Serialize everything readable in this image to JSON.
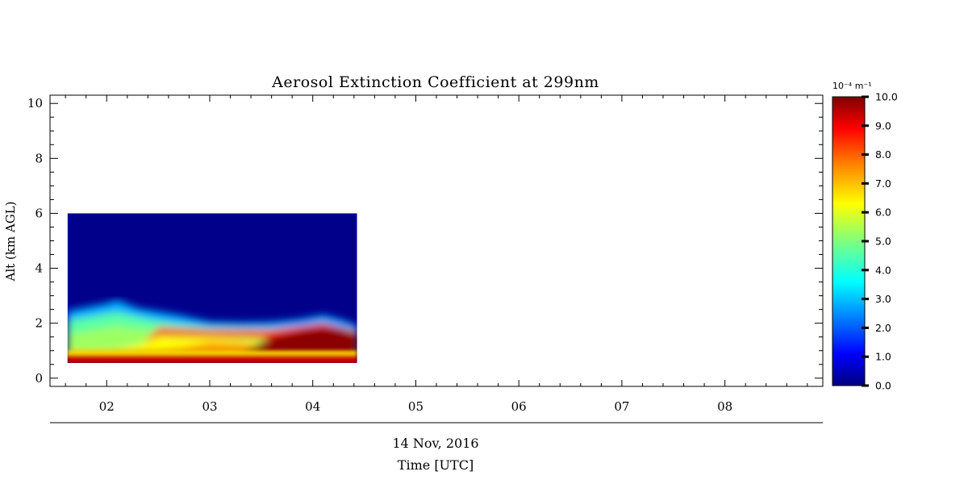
{
  "chart_data": {
    "type": "heatmap",
    "title": "Aerosol Extinction Coefficient at 299nm",
    "ylabel": "Alt (km AGL)",
    "xlabel": "Time [UTC]",
    "date_label": "14 Nov, 2016",
    "xlim": [
      1.45,
      8.95
    ],
    "ylim": [
      -0.3,
      10.3
    ],
    "x_ticks": [
      2,
      3,
      4,
      5,
      6,
      7,
      8
    ],
    "x_tick_labels": [
      "02",
      "03",
      "04",
      "05",
      "06",
      "07",
      "08"
    ],
    "y_ticks": [
      0,
      2,
      4,
      6,
      8,
      10
    ],
    "y_tick_labels": [
      "0",
      "2",
      "4",
      "6",
      "8",
      "10"
    ],
    "grid": false,
    "data_extent": {
      "x": [
        1.62,
        4.43
      ],
      "y": [
        0.55,
        6.0
      ]
    },
    "time_points": [
      1.62,
      2.0,
      2.1,
      2.3,
      2.5,
      2.7,
      3.0,
      3.3,
      3.6,
      3.9,
      4.1,
      4.3,
      4.43
    ],
    "profiles": [
      {
        "time": 1.62,
        "boundary_layer_top": 2.45,
        "layers": [
          {
            "z": [
              0.55,
              0.82
            ],
            "value": 9.5
          },
          {
            "z": [
              0.82,
              1.0
            ],
            "value": 6.2
          },
          {
            "z": [
              1.0,
              1.9
            ],
            "value": 4.7
          },
          {
            "z": [
              1.9,
              2.45
            ],
            "value": 3.5
          }
        ]
      },
      {
        "time": 2.1,
        "boundary_layer_top": 2.8,
        "layers": [
          {
            "z": [
              0.55,
              0.82
            ],
            "value": 9.5
          },
          {
            "z": [
              0.82,
              1.0
            ],
            "value": 6.3
          },
          {
            "z": [
              1.0,
              2.1
            ],
            "value": 5.0
          },
          {
            "z": [
              2.1,
              2.8
            ],
            "value": 3.6
          }
        ]
      },
      {
        "time": 3.0,
        "boundary_layer_top": 2.0,
        "layers": [
          {
            "z": [
              0.55,
              0.82
            ],
            "value": 9.5
          },
          {
            "z": [
              0.82,
              1.55
            ],
            "value": 7.5
          },
          {
            "z": [
              1.55,
              1.75
            ],
            "value": 8.5
          },
          {
            "z": [
              1.75,
              2.0
            ],
            "value": 3.5
          }
        ]
      },
      {
        "time": 4.1,
        "boundary_layer_top": 2.15,
        "layers": [
          {
            "z": [
              0.55,
              1.85
            ],
            "value": 10.0
          },
          {
            "z": [
              1.85,
              2.05
            ],
            "value": 7.0
          },
          {
            "z": [
              2.05,
              2.15
            ],
            "value": 3.5
          }
        ]
      }
    ],
    "colorbar": {
      "range": [
        0.0,
        10.0
      ],
      "ticks": [
        0.0,
        1.0,
        2.0,
        3.0,
        4.0,
        5.0,
        6.0,
        7.0,
        8.0,
        9.0,
        10.0
      ],
      "tick_labels": [
        "0.0",
        "1.0",
        "2.0",
        "3.0",
        "4.0",
        "5.0",
        "6.0",
        "7.0",
        "8.0",
        "9.0",
        "10.0"
      ],
      "unit": "10⁻⁴ m⁻¹",
      "colormap": "jet",
      "colormap_stops": [
        "#00007f",
        "#0000ff",
        "#007fff",
        "#00ffff",
        "#7fff7f",
        "#ffff00",
        "#ff7f00",
        "#ff0000",
        "#7f0000"
      ]
    }
  }
}
